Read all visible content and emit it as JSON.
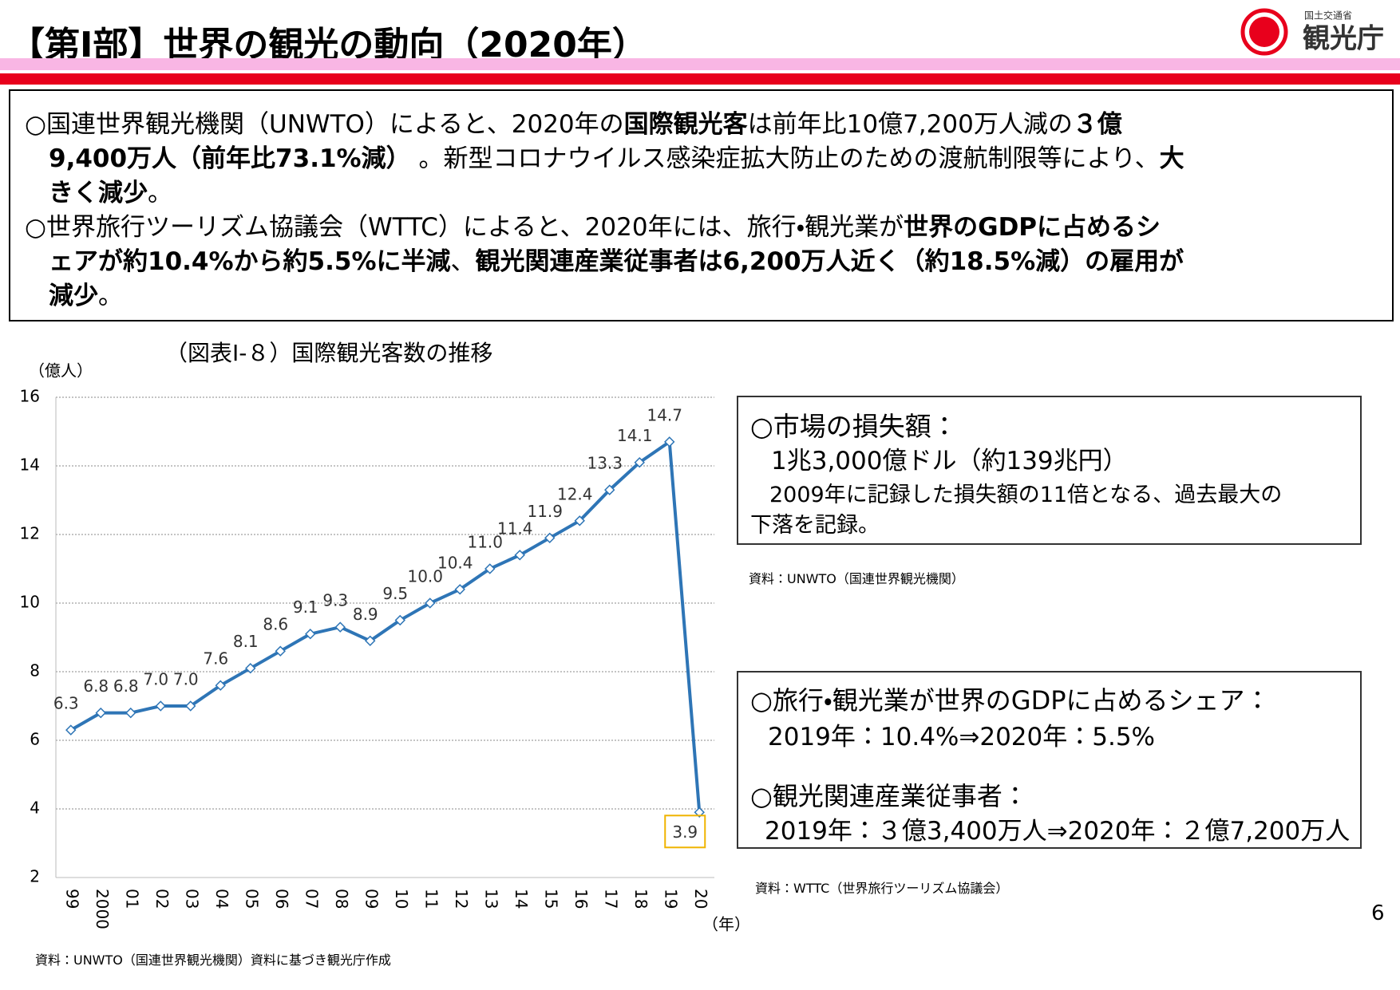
{
  "header": {
    "title": "【第Ⅰ部】世界の観光の動向（2020年）",
    "logo_ministry": "国土交通省",
    "logo_name": "観光庁"
  },
  "summary": {
    "lines": [
      [
        {
          "text": "○国連世界観光機関（UNWTO）によると、2020年の",
          "bold": false
        },
        {
          "text": "国際観光客",
          "bold": true
        },
        {
          "text": "は前年比10億7,200万人減の",
          "bold": false
        },
        {
          "text": "３億",
          "bold": true
        }
      ],
      [
        {
          "text": "9,400万人（前年比73.1%減）",
          "bold": true
        },
        {
          "text": " 。新型コロナウイルス感染症拡大防止のための渡航制限等により、",
          "bold": false
        },
        {
          "text": "大",
          "bold": true
        }
      ],
      [
        {
          "text": "きく減少",
          "bold": true
        },
        {
          "text": "。",
          "bold": false
        }
      ],
      [
        {
          "text": "○世界旅行ツーリズム協議会（WTTC）によると、2020年には、旅行・観光業が",
          "bold": false
        },
        {
          "text": "世界のGDPに占めるシ",
          "bold": true
        }
      ],
      [
        {
          "text": "ェアが約10.4%から約5.5%に半減",
          "bold": true
        },
        {
          "text": "、",
          "bold": false
        },
        {
          "text": "観光関連産業従事者は6,200万人近く（約18.5%減）の雇用が",
          "bold": true
        }
      ],
      [
        {
          "text": "減少",
          "bold": true
        },
        {
          "text": "。",
          "bold": false
        }
      ]
    ]
  },
  "chart_data": {
    "type": "line",
    "title": "（図表Ⅰ-８）国際観光客数の推移",
    "y_unit": "（億人）",
    "x_unit": "（年）",
    "categories": [
      "99",
      "2000",
      "01",
      "02",
      "03",
      "04",
      "05",
      "06",
      "07",
      "08",
      "09",
      "10",
      "11",
      "12",
      "13",
      "14",
      "15",
      "16",
      "17",
      "18",
      "19",
      "20"
    ],
    "values": [
      6.3,
      6.8,
      6.8,
      7.0,
      7.0,
      7.6,
      8.1,
      8.6,
      9.1,
      9.3,
      8.9,
      9.5,
      10.0,
      10.4,
      11.0,
      11.4,
      11.9,
      12.4,
      13.3,
      14.1,
      14.7,
      3.9
    ],
    "value_labels": [
      "6.3",
      "6.8",
      "6.8",
      "7.0",
      "7.0",
      "7.6",
      "8.1",
      "8.6",
      "9.1",
      "9.3",
      "8.9",
      "9.5",
      "10.0",
      "10.4",
      "11.0",
      "11.4",
      "11.9",
      "12.4",
      "13.3",
      "14.1",
      "14.7",
      "3.9"
    ],
    "color": "#2e75b6",
    "ylim": [
      2,
      16
    ],
    "yticks": [
      2,
      4,
      6,
      8,
      10,
      12,
      14,
      16
    ],
    "grid": true
  },
  "market_box": {
    "heading": "○市場の損失額：",
    "amount": "1兆3,000億ドル（約139兆円）",
    "note_1": "2009年に記録した損失額の11倍となる、過去最大の",
    "note_2": "下落を記録。",
    "source": "資料：UNWTO（国連世界観光機関）"
  },
  "gdp_box": {
    "heading_1": "○旅行・観光業が世界のGDPに占めるシェア：",
    "line_1": "2019年：10.4%⇒2020年：5.5%",
    "heading_2": "○観光関連産業従事者：",
    "line_2": "2019年：３億3,400万人⇒2020年：２億7,200万人",
    "source": "資料：WTTC（世界旅行ツーリズム協議会）"
  },
  "footer": {
    "source": "資料：UNWTO（国連世界観光機関）資料に基づき観光庁作成",
    "page": "6"
  }
}
